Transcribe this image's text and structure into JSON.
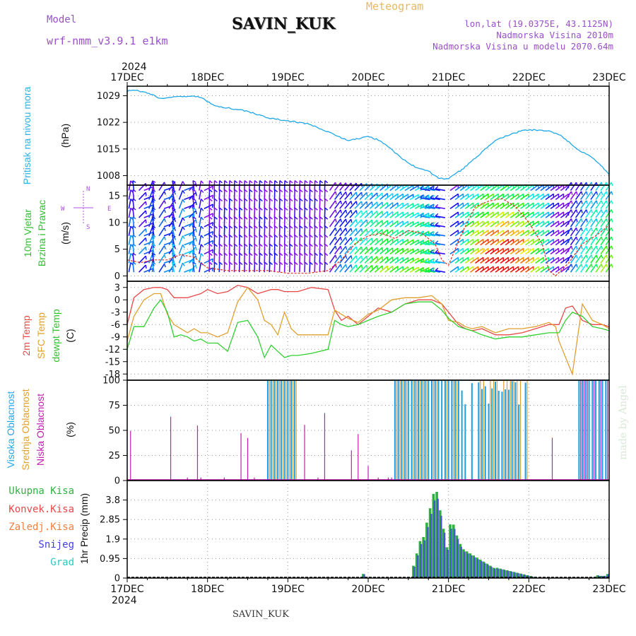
{
  "header": {
    "model_label": "Model",
    "model_name": "wrf-nmm_v3.9.1 e1km",
    "station": "SAVIN_KUK",
    "product": "Meteogram",
    "lonlat": "lon,lat (19.0375E, 43.1125N)",
    "elevation": "Nadmorska Visina 2010m",
    "model_elevation": "Nadmorska Visina u modelu 2070.64m",
    "footer_station": "SAVIN_KUK",
    "credit": "made by Angel"
  },
  "time_axis": {
    "labels": [
      "17DEC",
      "18DEC",
      "19DEC",
      "20DEC",
      "21DEC",
      "22DEC",
      "23DEC"
    ],
    "year": "2024",
    "hours_span": 144
  },
  "colors": {
    "pressure": "#20a8e8",
    "temp2m": "#e84848",
    "sfc_temp": "#e0a030",
    "dewpt": "#30d030",
    "high_cloud": "#18a0e8",
    "mid_cloud": "#e0a030",
    "low_cloud": "#c020b0",
    "total_precip": "#30b040",
    "snow": "#4040e0",
    "conv_precip": "#e84848",
    "frz_precip": "#f08040",
    "graupel": "#30c8c0"
  },
  "panels": {
    "pressure": {
      "l1": "Pritisak na nivou mora",
      "unit": "(hPa)"
    },
    "wind": {
      "l1": "10m Vjetar",
      "l2": "Brzina i Pravac",
      "unit": "(m/s)",
      "compass": {
        "n": "N",
        "s": "S",
        "w": "W",
        "e": "E"
      }
    },
    "temp": {
      "l1": "2m Temp",
      "l2": "SFC Temp",
      "l3": "dewpt Temp",
      "unit": "(C)"
    },
    "cloud": {
      "l1": "Visoka Oblacnost",
      "l2": "Srednja Oblacnost",
      "l3": "Niska Oblacnost",
      "unit": "(%)"
    },
    "precip": {
      "unit": "1hr Precip (mm)",
      "legend": [
        "Ukupna Kisa",
        "Konvek.Kisa",
        "Zaledj.Kisa",
        "Snijeg",
        "Grad"
      ]
    }
  },
  "chart_data": [
    {
      "type": "line",
      "title": "Pritisak na nivou mora",
      "ylabel": "(hPa)",
      "ylim": [
        1005.5,
        1031.5
      ],
      "yticks": [
        1008,
        1015,
        1022,
        1029
      ],
      "x_hours": [
        0,
        2,
        6,
        10,
        14,
        18,
        22,
        26,
        30,
        36,
        42,
        48,
        54,
        60,
        66,
        72,
        75,
        78,
        82,
        86,
        90,
        93,
        96,
        100,
        104,
        108,
        111,
        114,
        118,
        122,
        126,
        130,
        134,
        138,
        141,
        144
      ],
      "series": [
        {
          "values": [
            1030.2,
            1030.5,
            1029.8,
            1028.3,
            1028.6,
            1028.9,
            1028.6,
            1026.4,
            1025.8,
            1024.9,
            1023.2,
            1022.4,
            1021.6,
            1019.5,
            1017.2,
            1018.3,
            1017.4,
            1015.6,
            1012.5,
            1010.3,
            1009.2,
            1007.3,
            1007.2,
            1009.6,
            1012.6,
            1015.8,
            1017.8,
            1018.6,
            1019.9,
            1020.0,
            1019.7,
            1018.3,
            1015.2,
            1013.3,
            1011.2,
            1008.2
          ]
        }
      ]
    },
    {
      "type": "line",
      "title": "10m Vjetar Brzina i Pravac",
      "ylabel": "(m/s)",
      "ylim": [
        -1,
        17
      ],
      "yticks": [
        0,
        5,
        10,
        15
      ],
      "x_hours": [
        0,
        4,
        8,
        12,
        16,
        20,
        24,
        30,
        36,
        42,
        48,
        54,
        60,
        64,
        68,
        72,
        76,
        80,
        84,
        88,
        92,
        94,
        96,
        100,
        104,
        108,
        112,
        116,
        120,
        124,
        126,
        128,
        132,
        136,
        140,
        144
      ],
      "series": [
        {
          "values": [
            3.0,
            2.5,
            3.0,
            3.0,
            4.0,
            3.5,
            1.5,
            1.0,
            1.0,
            1.0,
            0.5,
            0.5,
            1.0,
            3.0,
            6.0,
            7.5,
            8.0,
            7.0,
            8.5,
            8.0,
            6.0,
            3.0,
            2.0,
            8.0,
            13.0,
            14.0,
            14.5,
            13.0,
            10.0,
            6.0,
            1.0,
            0.0,
            2.5,
            6.0,
            7.5,
            9.5
          ]
        }
      ]
    },
    {
      "type": "line",
      "title": "2m Temp / SFC Temp / dewpt Temp",
      "ylabel": "(C)",
      "ylim": [
        -19.5,
        4.5
      ],
      "yticks": [
        3,
        0,
        -3,
        -6,
        -9,
        -12,
        -15,
        -18
      ],
      "x_hours": [
        0,
        2,
        5,
        8,
        10,
        12,
        14,
        16,
        18,
        20,
        22,
        24,
        27,
        30,
        33,
        36,
        39,
        41,
        43,
        45,
        47,
        49,
        51,
        55,
        60,
        62,
        64,
        66,
        69,
        72,
        75,
        79,
        83,
        87,
        91,
        94,
        96,
        99,
        101,
        103,
        106,
        110,
        114,
        118,
        122,
        126,
        128,
        129,
        131,
        133,
        136,
        139,
        142,
        144
      ],
      "series": [
        {
          "name": "2m Temp",
          "values": [
            -6,
            0.5,
            2.5,
            3.0,
            3.0,
            2.5,
            0.5,
            0.5,
            0.5,
            1.0,
            1.5,
            2.5,
            1.5,
            2.0,
            3.5,
            3.0,
            1.5,
            2.0,
            2.5,
            2.5,
            2.0,
            2.0,
            2.0,
            3.0,
            2.5,
            -2.5,
            -5,
            -4,
            -6,
            -4,
            -2,
            -3,
            -1,
            0,
            0,
            -1,
            -3,
            -6,
            -7,
            -7.5,
            -7,
            -8.5,
            -8.5,
            -8,
            -7,
            -6,
            -6,
            -6,
            -2,
            -1.5,
            -5,
            -6,
            -6,
            -6.5
          ]
        },
        {
          "name": "SFC Temp",
          "values": [
            -10,
            -4,
            0,
            1.5,
            1.5,
            -3.5,
            -6,
            -7,
            -8,
            -7,
            -8,
            -8,
            -9,
            -8,
            -0.5,
            3,
            0,
            -5,
            -6,
            -8.5,
            -3,
            -7,
            -8.5,
            -8.5,
            -8.5,
            -2.5,
            -3.5,
            -4.5,
            -5.5,
            -3.5,
            -2.5,
            0,
            0.5,
            0.5,
            1,
            -1,
            -5,
            -5.5,
            -6.5,
            -7,
            -6.5,
            -8,
            -7,
            -7,
            -6.5,
            -5.5,
            -6.5,
            -10,
            -14,
            -18,
            -1,
            -5,
            -6,
            -7
          ]
        },
        {
          "name": "dewpt Temp",
          "values": [
            -12,
            -6.5,
            -6.5,
            -2,
            0,
            -3,
            -9,
            -8.5,
            -9,
            -10,
            -9.5,
            -10.5,
            -10.5,
            -12.5,
            -5.5,
            -5,
            -9,
            -14,
            -11,
            -12.5,
            -14,
            -13.5,
            -13.5,
            -13,
            -12,
            -5,
            -6,
            -6.5,
            -6,
            -5,
            -4,
            -3,
            -1,
            -0.5,
            -0.5,
            -2.5,
            -4.5,
            -6.5,
            -7,
            -7.5,
            -8.5,
            -9.5,
            -9,
            -9,
            -8.5,
            -8,
            -8,
            -8,
            -5,
            -3,
            -4,
            -6.5,
            -7,
            -7.5
          ]
        }
      ]
    },
    {
      "type": "bar",
      "title": "Visoka / Srednja / Niska Oblacnost",
      "ylabel": "(%)",
      "ylim": [
        0,
        100
      ],
      "yticks": [
        0,
        25,
        50,
        75,
        100
      ],
      "hour_step": 1
    },
    {
      "type": "bar",
      "title": "1hr Precip",
      "ylabel": "1hr Precip (mm)",
      "ylim": [
        0,
        4.75
      ],
      "yticks": [
        0,
        0.95,
        1.9,
        2.85,
        3.8
      ],
      "hour_step": 1
    }
  ]
}
